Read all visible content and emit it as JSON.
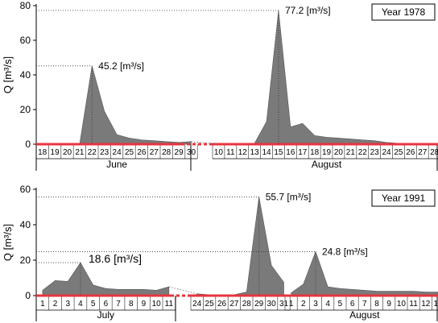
{
  "chart_data": [
    {
      "type": "area",
      "ylabel": "Q [m³/s]",
      "ylim": [
        0,
        80
      ],
      "yticks": [
        0,
        20,
        40,
        60,
        80
      ],
      "legend_box": "Year 1978",
      "colors": {
        "fill": "#7a7a7a",
        "baseline": "#e8343f",
        "grid": "#555555"
      },
      "segments": [
        {
          "month": "June",
          "days": [
            "18",
            "19",
            "20",
            "21",
            "22",
            "23",
            "24",
            "25",
            "26",
            "27",
            "28",
            "29",
            "30"
          ],
          "values": [
            0,
            0,
            0,
            0,
            45.2,
            19,
            5.5,
            3.5,
            2.5,
            2,
            1.5,
            1,
            1.5
          ]
        },
        {
          "month": "August",
          "days": [
            "10",
            "11",
            "12",
            "13",
            "14",
            "15",
            "16",
            "17",
            "18",
            "19",
            "20",
            "21",
            "22",
            "23",
            "24",
            "25",
            "26",
            "27",
            "28"
          ],
          "values": [
            0,
            0,
            0,
            0.5,
            13,
            77.2,
            10,
            12,
            5,
            4,
            3.5,
            3,
            2.5,
            2,
            1,
            0.5,
            0.5,
            0.3,
            0.3
          ]
        }
      ],
      "annotations": [
        {
          "text": "45.2 [m³/s]",
          "value": 45.2,
          "segment": 0,
          "day": "22"
        },
        {
          "text": "77.2 [m³/s]",
          "value": 77.2,
          "segment": 1,
          "day": "15"
        }
      ]
    },
    {
      "type": "area",
      "ylabel": "Q [m³/s]",
      "ylim": [
        0,
        60
      ],
      "yticks": [
        0,
        20,
        40,
        60
      ],
      "legend_box": "Year 1991",
      "colors": {
        "fill": "#7a7a7a",
        "baseline": "#e8343f",
        "grid": "#555555"
      },
      "segments": [
        {
          "month": "July",
          "days": [
            "1",
            "2",
            "3",
            "4",
            "5",
            "6",
            "7",
            "8",
            "9",
            "10",
            "11"
          ],
          "values": [
            3,
            8.5,
            8,
            18.6,
            6,
            4,
            3.5,
            3.5,
            3.5,
            3,
            5
          ]
        },
        {
          "month": "",
          "days": [
            "24",
            "25",
            "26",
            "27",
            "28",
            "29",
            "30",
            "31"
          ],
          "values": [
            1,
            0.5,
            0.5,
            0.5,
            2,
            55.7,
            17,
            7.5
          ]
        },
        {
          "month": "August",
          "days": [
            "1",
            "2",
            "3",
            "4",
            "5",
            "6",
            "7",
            "8",
            "9",
            "10",
            "11",
            "12",
            "13"
          ],
          "values": [
            1.5,
            6.5,
            24.8,
            5,
            4,
            3.5,
            3,
            2.5,
            2.5,
            2.5,
            2.5,
            2,
            2
          ]
        }
      ],
      "annotations": [
        {
          "text": "18.6 [m³/s]",
          "value": 18.6,
          "segment": 0,
          "day": "4"
        },
        {
          "text": "55.7 [m³/s]",
          "value": 55.7,
          "segment": 1,
          "day": "29"
        },
        {
          "text": "24.8 [m³/s]",
          "value": 24.8,
          "segment": 2,
          "day": "3"
        }
      ]
    }
  ]
}
